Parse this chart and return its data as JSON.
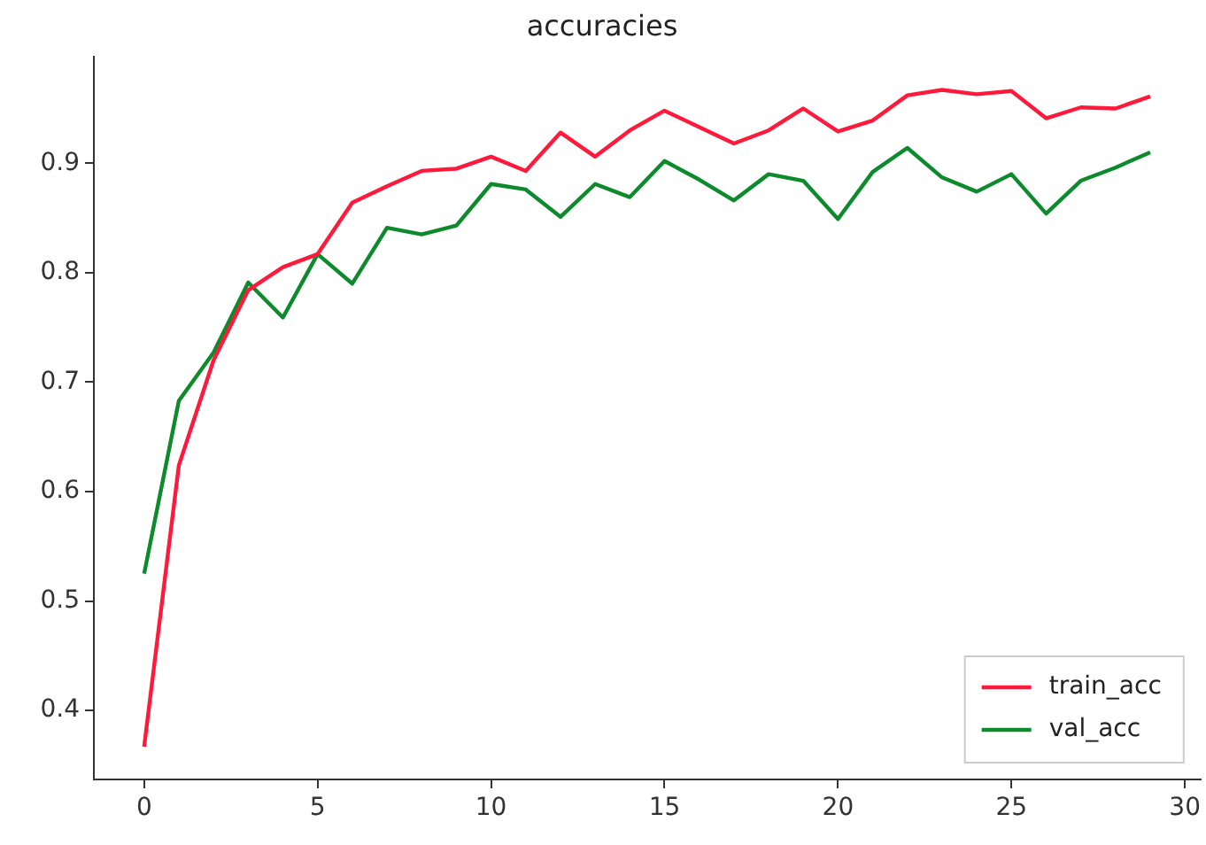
{
  "chart_data": {
    "type": "line",
    "title": "accuracies",
    "x": [
      0,
      1,
      2,
      3,
      4,
      5,
      6,
      7,
      8,
      9,
      10,
      11,
      12,
      13,
      14,
      15,
      16,
      17,
      18,
      19,
      20,
      21,
      22,
      23,
      24,
      25,
      26,
      27,
      28,
      29
    ],
    "series": [
      {
        "name": "train_acc",
        "color": "#ff1a3c",
        "values": [
          0.367,
          0.624,
          0.72,
          0.784,
          0.805,
          0.817,
          0.864,
          0.879,
          0.893,
          0.895,
          0.906,
          0.893,
          0.928,
          0.906,
          0.93,
          0.948,
          0.933,
          0.918,
          0.93,
          0.95,
          0.929,
          0.939,
          0.962,
          0.967,
          0.963,
          0.966,
          0.941,
          0.951,
          0.95,
          0.961
        ]
      },
      {
        "name": "val_acc",
        "color": "#0c8a2c",
        "values": [
          0.525,
          0.683,
          0.727,
          0.791,
          0.759,
          0.817,
          0.79,
          0.841,
          0.835,
          0.843,
          0.881,
          0.876,
          0.851,
          0.881,
          0.869,
          0.902,
          0.885,
          0.866,
          0.89,
          0.884,
          0.849,
          0.892,
          0.914,
          0.887,
          0.874,
          0.89,
          0.854,
          0.884,
          0.896,
          0.91
        ]
      }
    ],
    "xlim": [
      -1.45,
      30.45
    ],
    "xticks": [
      0,
      5,
      10,
      15,
      20,
      25,
      30
    ],
    "ylim": [
      0.337,
      0.997
    ],
    "yticks": [
      0.4,
      0.5,
      0.6,
      0.7,
      0.8,
      0.9
    ],
    "grid": false,
    "legend": "bottom right",
    "marker": "none",
    "line_style": "solid"
  }
}
